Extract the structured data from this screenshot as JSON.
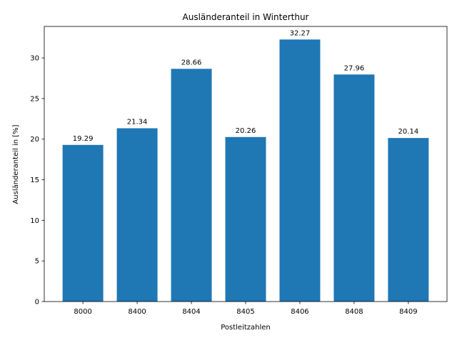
{
  "chart_data": {
    "type": "bar",
    "title": "Ausländeranteil in Winterthur",
    "xlabel": "Postleitzahlen",
    "ylabel": "Ausländeranteil in [%]",
    "categories": [
      "8000",
      "8400",
      "8404",
      "8405",
      "8406",
      "8408",
      "8409"
    ],
    "values": [
      19.29,
      21.34,
      28.66,
      20.26,
      32.27,
      27.96,
      20.14
    ],
    "value_labels": [
      "19.29",
      "21.34",
      "28.66",
      "20.26",
      "32.27",
      "27.96",
      "20.14"
    ],
    "yticks": [
      0,
      5,
      10,
      15,
      20,
      25,
      30
    ],
    "ylim": [
      0,
      33.88
    ],
    "bar_color": "#1f77b4",
    "grid": false,
    "legend": "none"
  }
}
